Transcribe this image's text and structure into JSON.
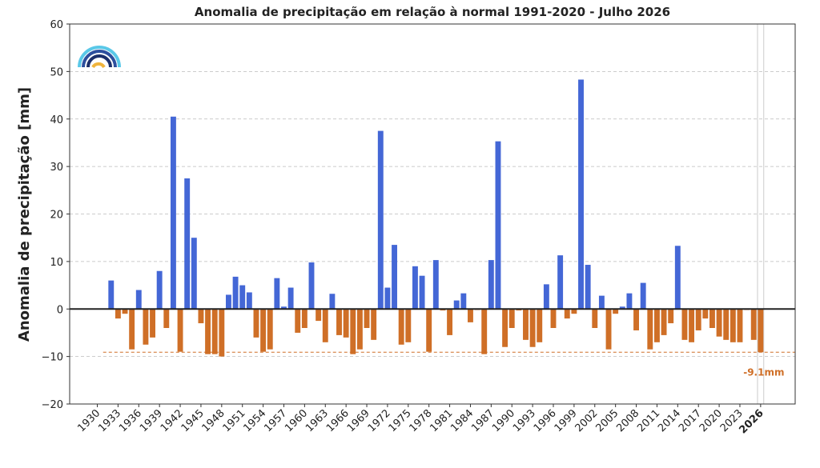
{
  "chart_data": {
    "type": "bar",
    "title": "Anomalia de precipitação em relação à normal 1991-2020 - Julho 2026",
    "y_label": "Anomalia de precipitação [mm]",
    "x": [
      1932,
      1933,
      1934,
      1935,
      1936,
      1937,
      1938,
      1939,
      1940,
      1941,
      1942,
      1943,
      1944,
      1945,
      1946,
      1947,
      1948,
      1949,
      1950,
      1951,
      1952,
      1953,
      1954,
      1955,
      1956,
      1957,
      1958,
      1959,
      1960,
      1961,
      1962,
      1963,
      1964,
      1965,
      1966,
      1967,
      1968,
      1969,
      1970,
      1971,
      1972,
      1973,
      1974,
      1975,
      1976,
      1977,
      1978,
      1979,
      1980,
      1981,
      1982,
      1983,
      1984,
      1985,
      1986,
      1987,
      1988,
      1989,
      1990,
      1991,
      1992,
      1993,
      1994,
      1995,
      1996,
      1997,
      1998,
      1999,
      2000,
      2001,
      2002,
      2003,
      2004,
      2005,
      2006,
      2007,
      2008,
      2009,
      2010,
      2011,
      2012,
      2013,
      2014,
      2015,
      2016,
      2017,
      2018,
      2019,
      2020,
      2021,
      2022,
      2023,
      2024,
      2025,
      2026
    ],
    "values": [
      6,
      -2,
      -1,
      -8.5,
      4,
      -7.5,
      -6,
      8,
      -4,
      40.5,
      -9,
      27.5,
      15,
      -3,
      -9.5,
      -9.5,
      -10,
      3,
      6.8,
      5,
      3.5,
      -6,
      -9,
      -8.5,
      6.5,
      0.5,
      4.5,
      -5,
      -4,
      9.8,
      -2.5,
      -7,
      3.2,
      -5.5,
      -6,
      -9.5,
      -8.5,
      -4,
      -6.5,
      37.5,
      4.5,
      13.5,
      -7.5,
      -7,
      9,
      7,
      -9,
      10.3,
      -0.3,
      -5.5,
      1.8,
      3.3,
      -2.8,
      -0.2,
      -9.5,
      10.3,
      35.3,
      -8,
      -4,
      -0.3,
      -6.5,
      -8,
      -7,
      5.2,
      -4,
      11.3,
      -2,
      -1,
      48.3,
      9.3,
      -4,
      2.8,
      -8.5,
      -1,
      0.5,
      3.3,
      -4.5,
      5.5,
      -8.5,
      -7,
      -5.5,
      -3,
      13.3,
      -6.5,
      -7,
      -4.5,
      -2,
      -4,
      -5.8,
      -6.5,
      -7,
      -7,
      -0.2,
      -6.5,
      -9.1
    ],
    "positive_color": "#4467d6",
    "negative_color": "#cf6f27",
    "xlim": [
      1926,
      2031
    ],
    "xticks": [
      1930,
      1933,
      1936,
      1939,
      1942,
      1945,
      1948,
      1951,
      1954,
      1957,
      1960,
      1963,
      1966,
      1969,
      1972,
      1975,
      1978,
      1981,
      1984,
      1987,
      1990,
      1993,
      1996,
      1999,
      2002,
      2005,
      2008,
      2011,
      2014,
      2017,
      2020,
      2023,
      2026
    ],
    "highlight": 2026,
    "ylim": [
      -20,
      60
    ],
    "yticks": [
      {
        "value": -20,
        "label": "−20"
      },
      {
        "value": -10,
        "label": "−10"
      },
      0,
      10,
      20,
      30,
      40,
      50,
      60
    ],
    "grid": true,
    "reference_line": {
      "value": -9.1,
      "label": "-9.1mm",
      "color": "#cf6f27"
    }
  }
}
